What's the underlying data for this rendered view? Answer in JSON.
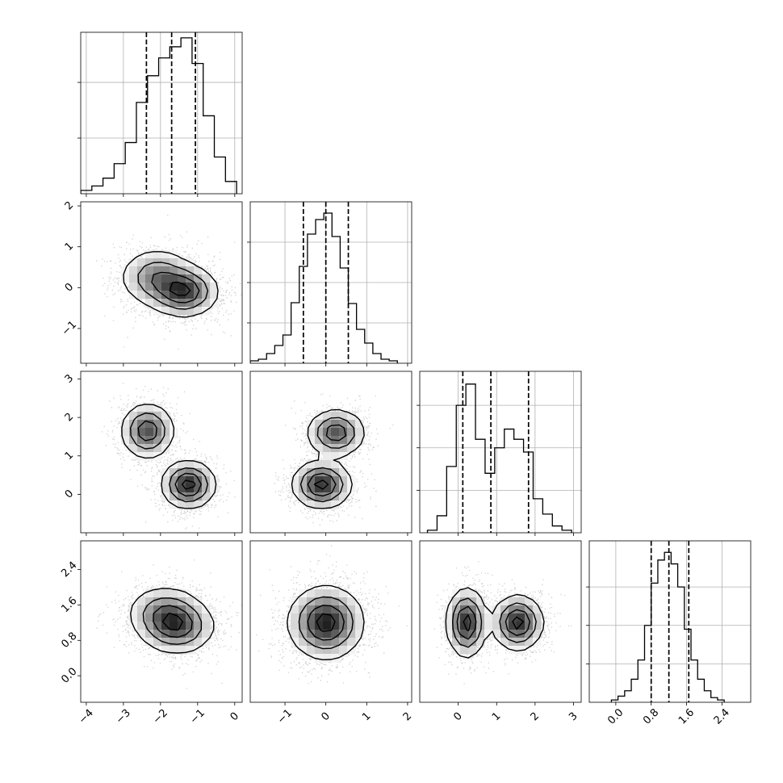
{
  "chart_data": {
    "type": "corner",
    "n_params": 4,
    "params": [
      {
        "range": [
          -4.15,
          0.2
        ],
        "ticks": [
          -4,
          -3,
          -2,
          -1,
          0
        ],
        "tick_labels": [
          "−4",
          "−3",
          "−2",
          "−1",
          "0"
        ],
        "quantiles": [
          -2.38,
          -1.7,
          -1.06
        ],
        "hist_bins": [
          -4.15,
          -3.85,
          -3.55,
          -3.25,
          -2.95,
          -2.65,
          -2.35,
          -2.05,
          -1.75,
          -1.45,
          -1.15,
          -0.85,
          -0.55,
          -0.25,
          0.05
        ],
        "hist_counts": [
          3,
          7,
          14,
          27,
          46,
          82,
          106,
          122,
          132,
          140,
          117,
          70,
          33,
          11
        ],
        "hist_ylim": [
          0,
          145
        ]
      },
      {
        "range": [
          -1.85,
          2.1
        ],
        "ticks": [
          -1,
          0,
          1,
          2
        ],
        "tick_labels": [
          "−1",
          "0",
          "1",
          "2"
        ],
        "quantiles": [
          -0.55,
          0.0,
          0.55
        ],
        "hist_bins": [
          -1.85,
          -1.65,
          -1.45,
          -1.25,
          -1.05,
          -0.85,
          -0.65,
          -0.45,
          -0.25,
          -0.05,
          0.15,
          0.35,
          0.55,
          0.75,
          0.95,
          1.15,
          1.35,
          1.55,
          1.75
        ],
        "hist_counts": [
          3,
          5,
          12,
          22,
          35,
          75,
          120,
          160,
          178,
          186,
          157,
          118,
          74,
          42,
          25,
          12,
          5,
          3
        ],
        "hist_ylim": [
          0,
          200
        ]
      },
      {
        "range": [
          -1.0,
          3.2
        ],
        "ticks": [
          0,
          1,
          2,
          3
        ],
        "tick_labels": [
          "0",
          "1",
          "2",
          "3"
        ],
        "quantiles": [
          0.12,
          0.85,
          1.83
        ],
        "hist_bins": [
          -0.8,
          -0.55,
          -0.3,
          -0.05,
          0.2,
          0.45,
          0.7,
          0.95,
          1.2,
          1.45,
          1.7,
          1.95,
          2.2,
          2.45,
          2.7,
          2.95
        ],
        "hist_counts": [
          3,
          20,
          78,
          150,
          175,
          110,
          70,
          100,
          122,
          110,
          95,
          40,
          22,
          8,
          3
        ],
        "hist_ylim": [
          0,
          190
        ]
      },
      {
        "range": [
          -0.6,
          3.05
        ],
        "ticks": [
          0.0,
          0.8,
          1.6,
          2.4
        ],
        "tick_labels": [
          "0.0",
          "0.8",
          "1.6",
          "2.4"
        ],
        "quantiles": [
          0.8,
          1.2,
          1.65
        ],
        "hist_bins": [
          -0.1,
          0.05,
          0.2,
          0.35,
          0.5,
          0.65,
          0.8,
          0.95,
          1.1,
          1.25,
          1.4,
          1.55,
          1.7,
          1.85,
          2.0,
          2.15,
          2.3,
          2.45
        ],
        "hist_counts": [
          3,
          8,
          15,
          30,
          55,
          100,
          155,
          185,
          195,
          180,
          150,
          95,
          55,
          30,
          15,
          6,
          3
        ],
        "hist_ylim": [
          0,
          210
        ]
      }
    ],
    "pairs": [
      {
        "x": 0,
        "y": 1,
        "clusters": [
          {
            "cx": -1.35,
            "cy": -0.1,
            "sx": 0.45,
            "sy": 0.3,
            "w": 0.6
          },
          {
            "cx": -2.1,
            "cy": 0.25,
            "sx": 0.5,
            "sy": 0.35,
            "w": 0.4
          }
        ]
      },
      {
        "x": 0,
        "y": 2,
        "clusters": [
          {
            "cx": -1.25,
            "cy": 0.25,
            "sx": 0.35,
            "sy": 0.3,
            "w": 0.55
          },
          {
            "cx": -2.35,
            "cy": 1.65,
            "sx": 0.35,
            "sy": 0.35,
            "w": 0.45
          }
        ]
      },
      {
        "x": 1,
        "y": 2,
        "clusters": [
          {
            "cx": -0.1,
            "cy": 0.25,
            "sx": 0.35,
            "sy": 0.3,
            "w": 0.55
          },
          {
            "cx": 0.25,
            "cy": 1.6,
            "sx": 0.35,
            "sy": 0.3,
            "w": 0.45
          }
        ]
      },
      {
        "x": 0,
        "y": 3,
        "clusters": [
          {
            "cx": -1.55,
            "cy": 1.1,
            "sx": 0.5,
            "sy": 0.3,
            "w": 0.6
          },
          {
            "cx": -1.9,
            "cy": 1.45,
            "sx": 0.5,
            "sy": 0.3,
            "w": 0.4
          }
        ]
      },
      {
        "x": 1,
        "y": 3,
        "clusters": [
          {
            "cx": 0.0,
            "cy": 1.2,
            "sx": 0.45,
            "sy": 0.4,
            "w": 1.0
          }
        ]
      },
      {
        "x": 2,
        "y": 3,
        "clusters": [
          {
            "cx": 0.22,
            "cy": 1.2,
            "sx": 0.25,
            "sy": 0.38,
            "w": 0.5
          },
          {
            "cx": 1.55,
            "cy": 1.2,
            "sx": 0.32,
            "sy": 0.3,
            "w": 0.5
          }
        ]
      }
    ],
    "contour_levels": [
      0.12,
      0.35,
      0.62,
      0.88
    ],
    "grid": true,
    "histogram_ticks": {
      "0": [
        50,
        100
      ],
      "1": [
        50,
        100,
        150
      ],
      "2": [
        50,
        100,
        150
      ],
      "3": [
        50,
        100,
        150
      ]
    }
  }
}
